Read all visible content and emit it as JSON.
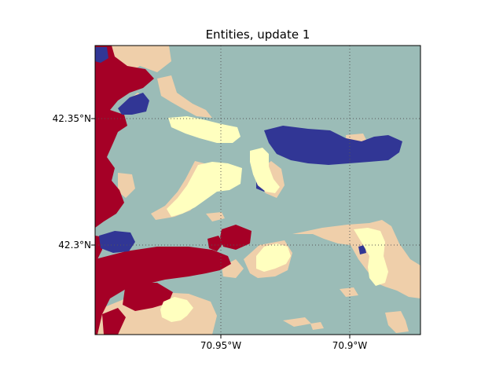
{
  "title": "Entities, update 1",
  "x_ticks": [
    "70.95°W",
    "70.9°W"
  ],
  "y_ticks": [
    "42.35°N",
    "42.3°N"
  ],
  "colors": {
    "water": "#9bbcb7",
    "sand": "#efcfaa",
    "entity_red": "#a50026",
    "entity_blue": "#313695",
    "entity_yellow": "#ffffbf",
    "grid": "#555555"
  },
  "layers": [
    "water",
    "sand",
    "entity-red",
    "entity-blue",
    "entity-yellow"
  ]
}
